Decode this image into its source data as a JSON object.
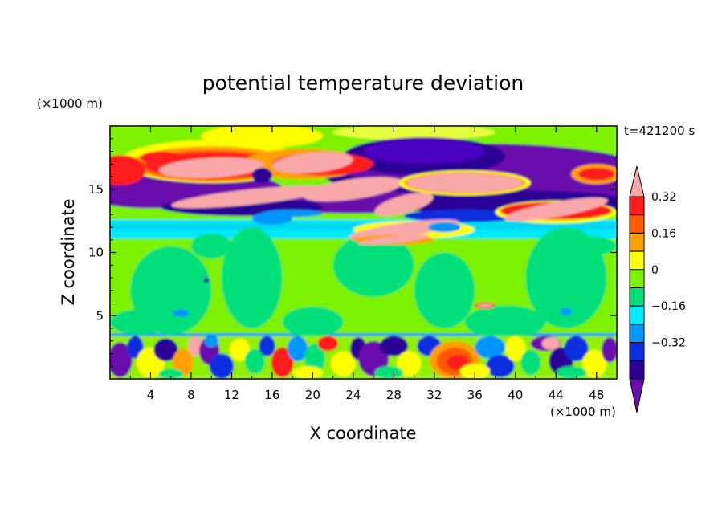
{
  "chart_data": {
    "type": "heatmap",
    "title": "potential temperature deviation",
    "xlabel": "X coordinate",
    "ylabel": "Z coordinate",
    "x_unit": "(×1000 m)",
    "y_unit": "(×1000 m)",
    "time_label": "t=421200 s",
    "xlim": [
      0,
      50
    ],
    "ylim": [
      0,
      20
    ],
    "x_ticks": [
      4,
      8,
      12,
      16,
      20,
      24,
      28,
      32,
      36,
      40,
      44,
      48
    ],
    "y_ticks": [
      5,
      10,
      15
    ],
    "colorbar": {
      "labels": [
        0.32,
        0.16,
        0,
        -0.16,
        -0.32
      ],
      "levels": [
        -0.4,
        -0.32,
        -0.24,
        -0.16,
        -0.08,
        0,
        0.08,
        0.16,
        0.24,
        0.32,
        0.4
      ],
      "colors": [
        "#6a0dad",
        "#2b0096",
        "#0a2ee0",
        "#0096ff",
        "#00eaff",
        "#00e07a",
        "#7cf200",
        "#ffff00",
        "#ffa000",
        "#ff5a00",
        "#ff1e1e",
        "#f8a8a8"
      ]
    }
  }
}
